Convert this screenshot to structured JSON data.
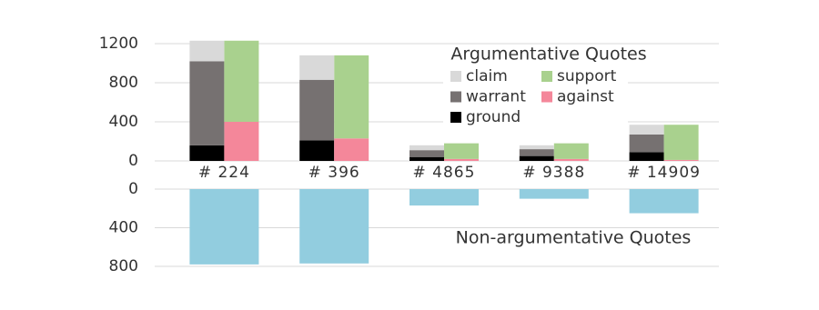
{
  "chart_data": [
    {
      "type": "stacked_bar",
      "title": "Argumentative Quotes",
      "categories": [
        "# 224",
        "# 396",
        "# 4865",
        "# 9388",
        "# 14909"
      ],
      "series": [
        {
          "name": "claim",
          "color": "#d9d9d9",
          "stack": 0,
          "values": [
            210,
            250,
            50,
            40,
            100
          ]
        },
        {
          "name": "support",
          "color": "#a9d18e",
          "stack": 1,
          "values": [
            830,
            850,
            160,
            160,
            360
          ]
        },
        {
          "name": "warrant",
          "color": "#767171",
          "stack": 0,
          "values": [
            860,
            620,
            70,
            70,
            180
          ]
        },
        {
          "name": "against",
          "color": "#f4879a",
          "stack": 1,
          "values": [
            400,
            230,
            20,
            20,
            10
          ]
        },
        {
          "name": "ground",
          "color": "#000000",
          "stack": 0,
          "values": [
            160,
            210,
            40,
            50,
            90
          ]
        }
      ],
      "ylim": [
        0,
        1250
      ],
      "yticks": [
        0,
        400,
        800,
        1200
      ],
      "grid": true
    },
    {
      "type": "bar",
      "title": "Non-argumentative Quotes",
      "color": "#92cddf",
      "inverted": true,
      "values": [
        780,
        770,
        170,
        100,
        250
      ],
      "ylim": [
        0,
        800
      ],
      "yticks": [
        0,
        400,
        800
      ],
      "grid": true
    }
  ]
}
